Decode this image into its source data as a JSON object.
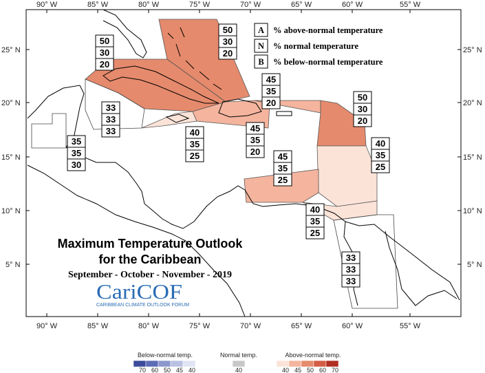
{
  "map": {
    "title_line1": "Maximum Temperature Outlook",
    "title_line2": "for the Caribbean",
    "subtitle": "September - October - November - 2019",
    "logo": "CariCOF",
    "logo_subtitle": "CARIBBEAN CLIMATE OUTLOOK FORUM",
    "top_axis_labels": [
      "90° W",
      "85° W",
      "80° W",
      "75° W",
      "70° W",
      "65° W",
      "60° W",
      "55° W"
    ],
    "bottom_axis_labels": [
      "90° W",
      "85° W",
      "80° W",
      "75° W",
      "70° W",
      "65° W",
      "60° W",
      "55° W"
    ],
    "left_axis_labels": [
      "25° N",
      "20° N",
      "15° N",
      "10° N",
      "5° N"
    ],
    "right_axis_labels": [
      "25° N",
      "20° N",
      "15° N",
      "10° N",
      "5° N"
    ]
  },
  "legend": {
    "items": [
      {
        "letter": "A",
        "text": "% above-normal temperature"
      },
      {
        "letter": "N",
        "text": "% normal temperature"
      },
      {
        "letter": "B",
        "text": "% below-normal temperature"
      }
    ]
  },
  "regions": [
    {
      "name": "bahamas",
      "values": [
        "50",
        "30",
        "20"
      ],
      "color": "#e58a6c"
    },
    {
      "name": "cuba",
      "values": [
        "50",
        "30",
        "20"
      ],
      "color": "#e58a6c"
    },
    {
      "name": "belize",
      "values": [
        "33",
        "33",
        "33"
      ],
      "color": "#ffffff"
    },
    {
      "name": "honduras-nicaragua",
      "values": [
        "35",
        "35",
        "30"
      ],
      "color": "#ffffff"
    },
    {
      "name": "jamaica",
      "values": [
        "40",
        "35",
        "25"
      ],
      "color": "#fbe3d8"
    },
    {
      "name": "hispaniola",
      "values": [
        "45",
        "35",
        "20"
      ],
      "color": "#f4b49e"
    },
    {
      "name": "turks-caicos",
      "values": [
        "45",
        "35",
        "20"
      ],
      "color": "#f4b49e"
    },
    {
      "name": "leeward-islands",
      "values": [
        "50",
        "30",
        "20"
      ],
      "color": "#e58a6c"
    },
    {
      "name": "windward-islands",
      "values": [
        "40",
        "35",
        "25"
      ],
      "color": "#fbe3d8"
    },
    {
      "name": "abc-islands",
      "values": [
        "45",
        "35",
        "25"
      ],
      "color": "#f4b49e"
    },
    {
      "name": "trinidad-tobago",
      "values": [
        "40",
        "35",
        "25"
      ],
      "color": "#fbe3d8"
    },
    {
      "name": "guianas",
      "values": [
        "33",
        "33",
        "33"
      ],
      "color": "#ffffff"
    }
  ],
  "colorbar": {
    "below": {
      "title": "Below-normal temp.",
      "ticks": [
        "70",
        "60",
        "50",
        "45",
        "40"
      ],
      "colors": [
        "#3b4a9a",
        "#5d6cb6",
        "#8c97cd",
        "#b9c0e2",
        "#e0e4f3"
      ]
    },
    "normal": {
      "title": "Normal temp.",
      "ticks": [
        "40"
      ],
      "colors": [
        "#c8c8c8"
      ]
    },
    "above": {
      "title": "Above-normal temp.",
      "ticks": [
        "40",
        "45",
        "50",
        "60",
        "70"
      ],
      "colors": [
        "#fbe3d8",
        "#f4b49e",
        "#e58a6c",
        "#d35d45",
        "#b02e22"
      ]
    }
  }
}
